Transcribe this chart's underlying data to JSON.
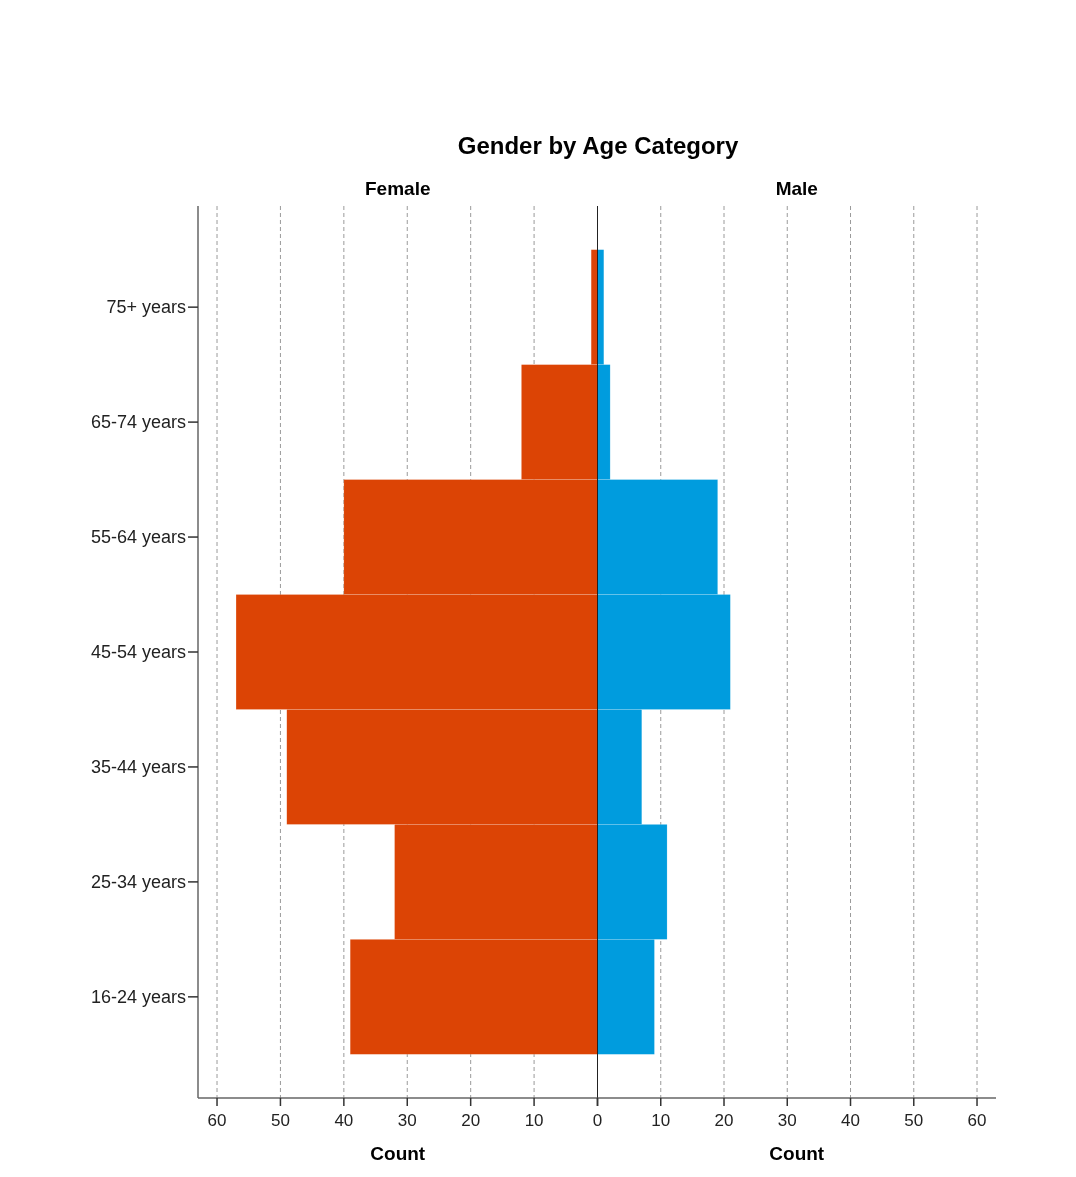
{
  "chart_data": [
    {
      "type": "bar",
      "orientation": "horizontal",
      "title": "Gender by Age Category",
      "subtitle": "Female",
      "xlabel": "Count",
      "categories": [
        "75+ years",
        "65-74 years",
        "55-64 years",
        "45-54 years",
        "35-44 years",
        "25-34 years",
        "16-24 years"
      ],
      "series": [
        {
          "color": "#dc4405",
          "values": [
            1,
            12,
            40,
            57,
            49,
            32,
            39
          ]
        }
      ],
      "xlim": [
        63,
        0
      ],
      "xticks": [
        60,
        50,
        40,
        30,
        20,
        10,
        {
          "value": 0,
          "label": null
        }
      ],
      "grid": "x"
    },
    {
      "type": "bar",
      "orientation": "horizontal",
      "subtitle": "Male",
      "xlabel": "Count",
      "categories": [
        null,
        null,
        null,
        null,
        null,
        null,
        null
      ],
      "series": [
        {
          "color": "#009cde",
          "values": [
            1,
            2,
            19,
            21,
            7,
            11,
            9
          ]
        }
      ],
      "xlim": [
        0,
        63
      ],
      "xticks": [
        0,
        10,
        20,
        30,
        40,
        50,
        60
      ],
      "grid": "x",
      "tick_labels": "x"
    }
  ]
}
